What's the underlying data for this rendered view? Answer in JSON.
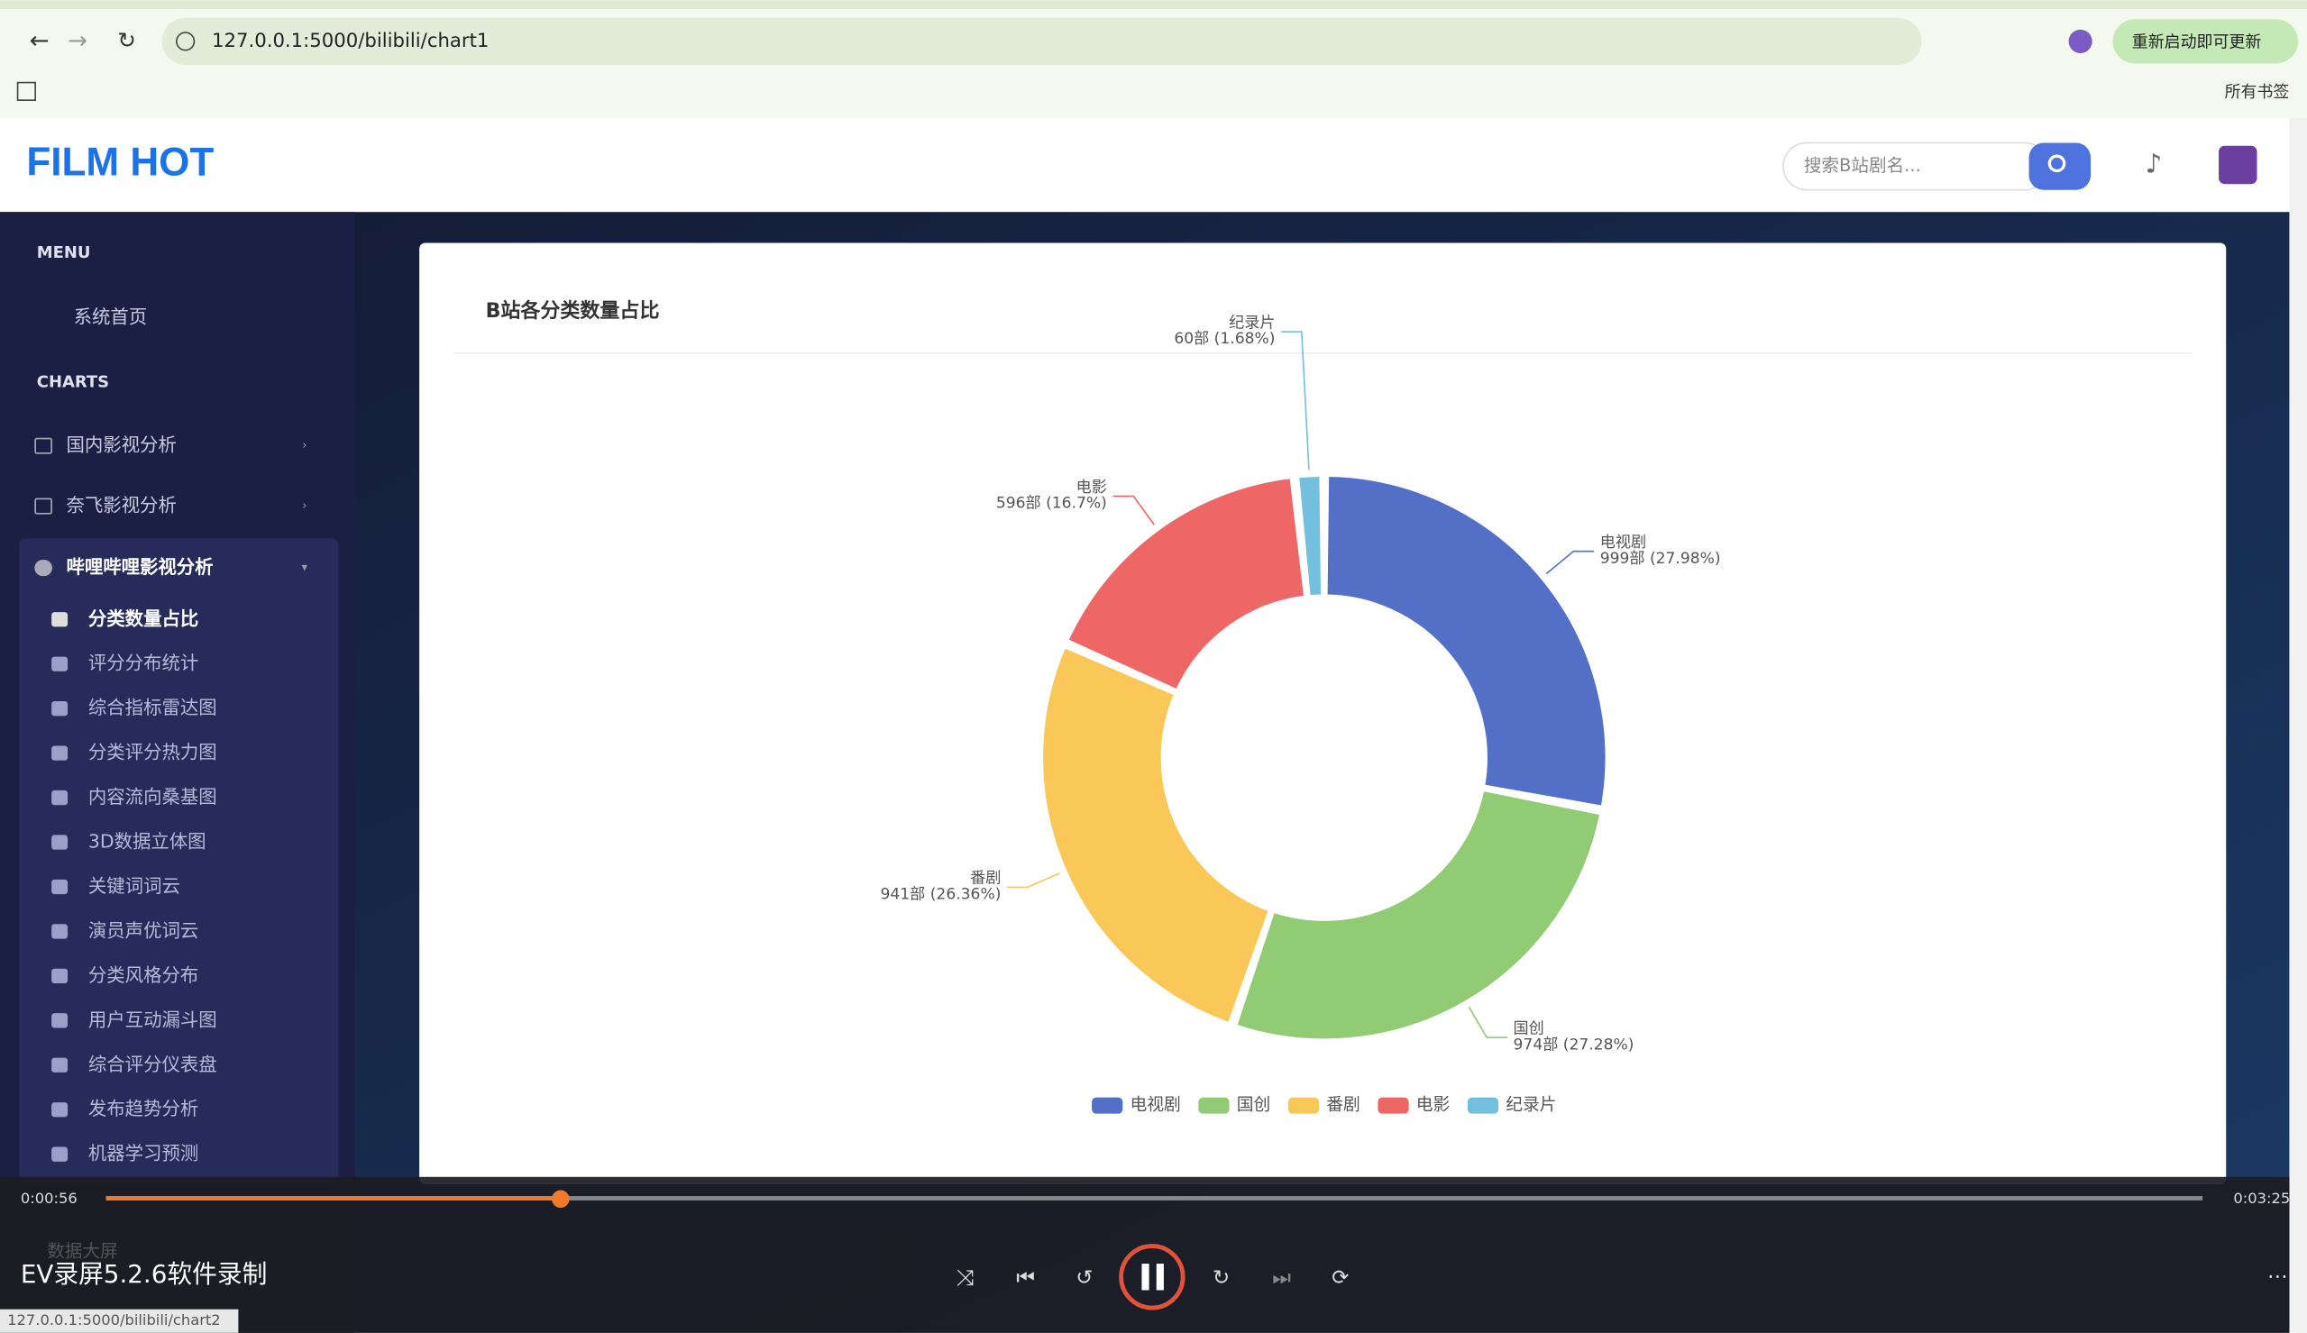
{
  "browser": {
    "url": "127.0.0.1:5000/bilibili/chart1",
    "update_button": "重新启动即可更新",
    "bookmarks": "所有书签"
  },
  "header": {
    "logo": "FILM HOT",
    "search_placeholder": "搜索B站剧名..."
  },
  "sidebar": {
    "menu_heading": "MENU",
    "home": "系统首页",
    "charts_heading": "CHARTS",
    "groups": [
      "国内影视分析",
      "奈飞影视分析",
      "哔哩哔哩影视分析"
    ],
    "items": [
      "分类数量占比",
      "评分分布统计",
      "综合指标雷达图",
      "分类评分热力图",
      "内容流向桑基图",
      "3D数据立体图",
      "关键词词云",
      "演员声优词云",
      "分类风格分布",
      "用户互动漏斗图",
      "综合评分仪表盘",
      "发布趋势分析",
      "机器学习预测"
    ],
    "obscured_item": "数据大屏"
  },
  "chart_data": {
    "type": "pie",
    "title": "B站各分类数量占比",
    "categories": [
      "电视剧",
      "国创",
      "番剧",
      "电影",
      "纪录片"
    ],
    "values": [
      999,
      974,
      941,
      596,
      60
    ],
    "value_labels": [
      "999部 (27.98%)",
      "974部 (27.28%)",
      "941部 (26.36%)",
      "596部 (16.7%)",
      "60部 (1.68%)"
    ],
    "colors": [
      "#5470c6",
      "#91cc75",
      "#fac858",
      "#ee6666",
      "#73c0de"
    ],
    "donut": true,
    "legend": "bottom"
  },
  "player": {
    "elapsed": "0:00:56",
    "duration": "0:03:25",
    "watermark": "EV录屏5.2.6软件录制"
  },
  "status_bar": "127.0.0.1:5000/bilibili/chart2"
}
